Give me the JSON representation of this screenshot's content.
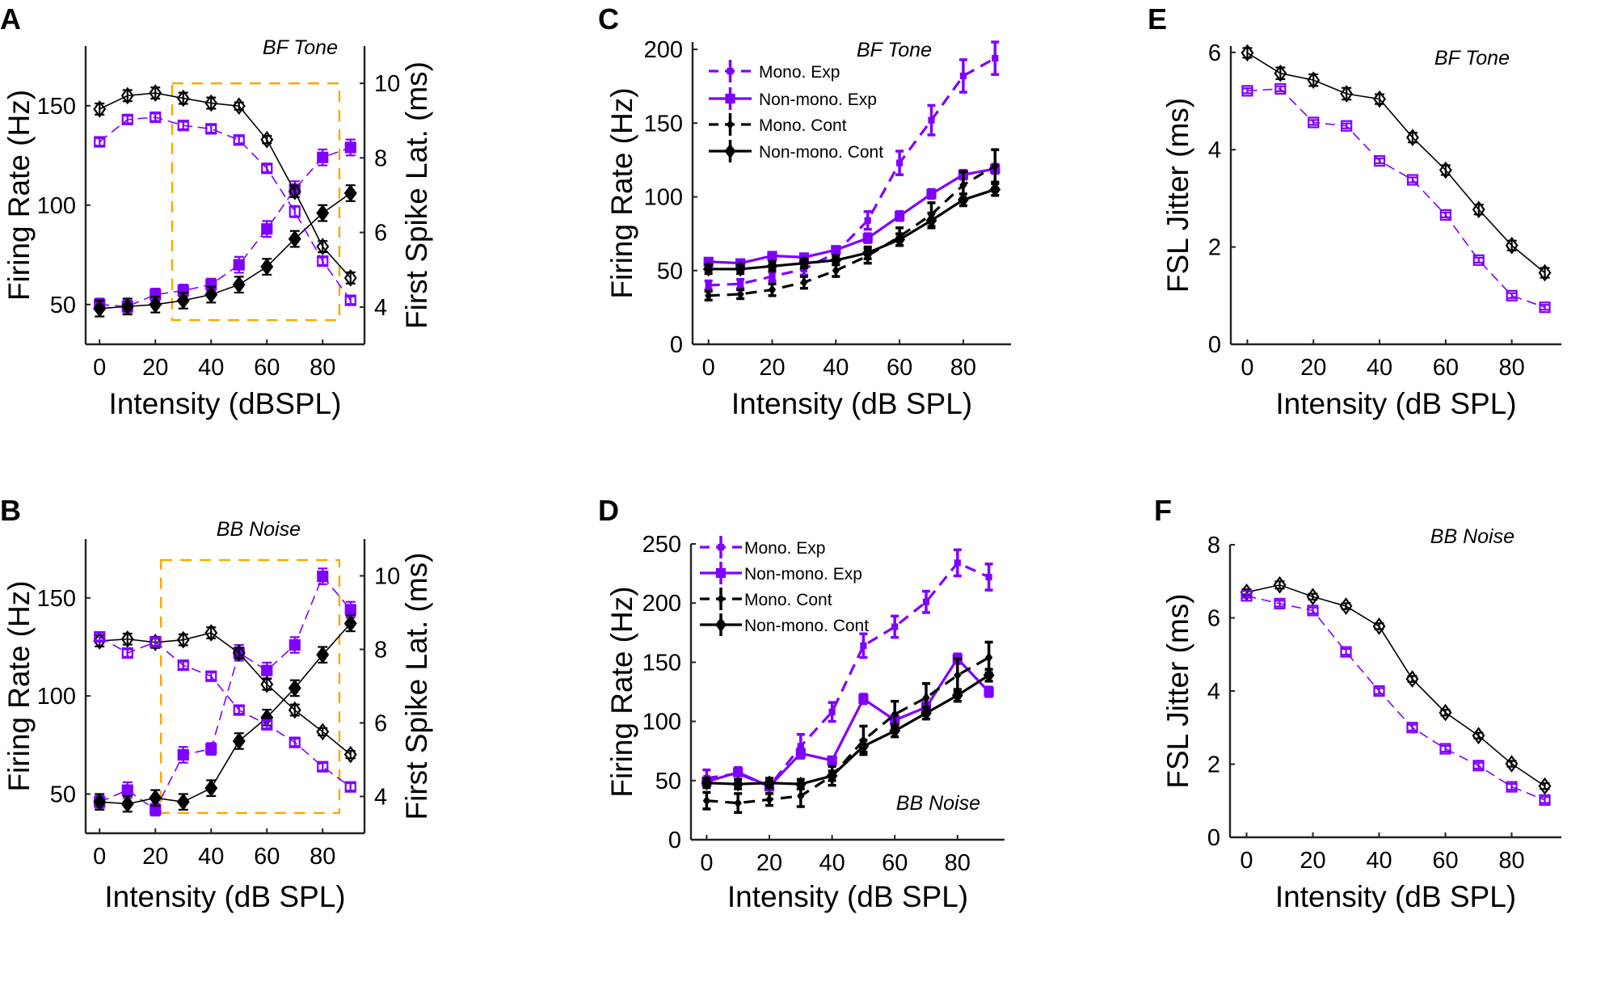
{
  "colors": {
    "experimental": "#7f00ff",
    "control": "#000000",
    "highlight_box": "#ffa500"
  },
  "chart_data": [
    {
      "panel": "A",
      "type": "line",
      "title": "BF Tone",
      "xlabel": "Intensity (dBSPL)",
      "ylabel": "Firing Rate (Hz)",
      "y2label": "First Spike Lat. (ms)",
      "xlim": [
        -5,
        95
      ],
      "ylim": [
        30,
        180
      ],
      "y2lim": [
        3,
        11
      ],
      "xticks": [
        0,
        20,
        40,
        60,
        80
      ],
      "yticks": [
        50,
        100,
        150
      ],
      "y2ticks": [
        4,
        6,
        8,
        10
      ],
      "grid": false,
      "x": [
        0,
        10,
        20,
        30,
        40,
        50,
        60,
        70,
        80,
        90
      ],
      "highlight_box": {
        "x": [
          26,
          86
        ],
        "y2": [
          3.65,
          10
        ]
      },
      "series": [
        {
          "axis": "left",
          "marker": "square",
          "filled": true,
          "dashed": true,
          "color": "#7f00ff",
          "values": [
            50,
            49,
            55,
            57,
            60,
            70,
            88,
            108,
            124,
            129
          ],
          "err": [
            3,
            3,
            3,
            3,
            3,
            4,
            4,
            4,
            4,
            4
          ]
        },
        {
          "axis": "left",
          "marker": "diamond",
          "filled": true,
          "dashed": false,
          "color": "#000000",
          "values": [
            48,
            49,
            50,
            52,
            55,
            60,
            69,
            83,
            96,
            106
          ],
          "err": [
            4,
            4,
            4,
            4,
            4,
            4,
            4,
            4,
            4,
            4
          ]
        },
        {
          "axis": "right",
          "marker": "diamond",
          "filled": false,
          "dashed": false,
          "color": "#000000",
          "values": [
            9.31,
            9.67,
            9.74,
            9.6,
            9.47,
            9.39,
            8.49,
            7.1,
            5.62,
            4.78
          ],
          "err": [
            0.15,
            0.15,
            0.15,
            0.15,
            0.15,
            0.1,
            0.1,
            0.15,
            0.15,
            0.15
          ]
        },
        {
          "axis": "right",
          "marker": "square",
          "filled": false,
          "dashed": true,
          "color": "#7f00ff",
          "values": [
            8.43,
            9.03,
            9.09,
            8.87,
            8.78,
            8.48,
            7.72,
            6.56,
            5.23,
            4.18
          ],
          "err": [
            0.1,
            0.1,
            0.1,
            0.1,
            0.1,
            0.1,
            0.1,
            0.15,
            0.1,
            0.1
          ]
        }
      ]
    },
    {
      "panel": "B",
      "type": "line",
      "title": "BB Noise",
      "xlabel": "Intensity (dB SPL)",
      "ylabel": "Firing Rate (Hz)",
      "y2label": "First Spike Lat. (ms)",
      "xlim": [
        -5,
        95
      ],
      "ylim": [
        30,
        180
      ],
      "y2lim": [
        3,
        11
      ],
      "xticks": [
        0,
        20,
        40,
        60,
        80
      ],
      "yticks": [
        50,
        100,
        150
      ],
      "y2ticks": [
        4,
        6,
        8,
        10
      ],
      "grid": false,
      "x": [
        0,
        10,
        20,
        30,
        40,
        50,
        60,
        70,
        80,
        90
      ],
      "highlight_box": {
        "x": [
          22,
          86
        ],
        "y2": [
          3.55,
          10.43
        ]
      },
      "series": [
        {
          "axis": "left",
          "marker": "square",
          "filled": true,
          "dashed": true,
          "color": "#7f00ff",
          "values": [
            46,
            52,
            42,
            70,
            73,
            122,
            113,
            126,
            161,
            144
          ],
          "err": [
            3,
            4,
            3,
            4,
            3,
            4,
            4,
            4,
            4,
            4
          ]
        },
        {
          "axis": "left",
          "marker": "diamond",
          "filled": true,
          "dashed": false,
          "color": "#000000",
          "values": [
            46,
            45,
            48,
            46,
            53,
            77,
            89,
            104,
            121,
            137
          ],
          "err": [
            4,
            4,
            4,
            4,
            4,
            4,
            4,
            4,
            4,
            4
          ]
        },
        {
          "axis": "right",
          "marker": "diamond",
          "filled": false,
          "dashed": false,
          "color": "#000000",
          "values": [
            8.23,
            8.28,
            8.19,
            8.26,
            8.45,
            7.9,
            7.05,
            6.35,
            5.76,
            5.14
          ],
          "err": [
            0.15,
            0.15,
            0.15,
            0.15,
            0.15,
            0.15,
            0.15,
            0.15,
            0.1,
            0.1
          ]
        },
        {
          "axis": "right",
          "marker": "square",
          "filled": false,
          "dashed": true,
          "color": "#7f00ff",
          "values": [
            8.34,
            7.9,
            8.2,
            7.57,
            7.27,
            6.35,
            5.95,
            5.47,
            4.81,
            4.26
          ],
          "err": [
            0.1,
            0.1,
            0.1,
            0.1,
            0.1,
            0.1,
            0.1,
            0.1,
            0.1,
            0.1
          ]
        }
      ]
    },
    {
      "panel": "C",
      "type": "line",
      "title": "BF Tone",
      "xlabel": "Intensity (dB SPL)",
      "ylabel": "Firing Rate (Hz)",
      "xlim": [
        -5,
        95
      ],
      "ylim": [
        0,
        205
      ],
      "xticks": [
        0,
        20,
        40,
        60,
        80
      ],
      "yticks": [
        0,
        50,
        100,
        150,
        200
      ],
      "grid": false,
      "legend": "top-left",
      "x": [
        0,
        10,
        20,
        30,
        40,
        50,
        60,
        70,
        80,
        90
      ],
      "series": [
        {
          "name": "Mono. Exp",
          "marker": "square-small",
          "filled": true,
          "dashed": true,
          "color": "#7f00ff",
          "values": [
            40,
            41,
            46,
            51,
            62,
            84,
            123,
            152,
            182,
            194
          ],
          "err": [
            3,
            3,
            3,
            4,
            4,
            6,
            8,
            10,
            11,
            11
          ]
        },
        {
          "name": "Non-mono. Exp",
          "marker": "square",
          "filled": true,
          "dashed": false,
          "color": "#7f00ff",
          "values": [
            56,
            55,
            60,
            59,
            64,
            72,
            87,
            102,
            115,
            119
          ],
          "err": [
            2,
            2,
            2,
            2,
            2,
            3,
            3,
            3,
            3,
            3
          ]
        },
        {
          "name": "Mono. Cont",
          "marker": "diamond-small",
          "filled": true,
          "dashed": true,
          "color": "#000000",
          "values": [
            33,
            34,
            37,
            42,
            50,
            60,
            73,
            88,
            108,
            121
          ],
          "err": [
            3,
            3,
            4,
            4,
            4,
            5,
            6,
            8,
            9,
            11
          ]
        },
        {
          "name": "Non-mono. Cont",
          "marker": "diamond",
          "filled": true,
          "dashed": false,
          "color": "#000000",
          "values": [
            51,
            51,
            53,
            55,
            57,
            62,
            71,
            84,
            98,
            105
          ],
          "err": [
            3,
            3,
            3,
            3,
            3,
            4,
            4,
            5,
            4,
            4
          ]
        }
      ]
    },
    {
      "panel": "D",
      "type": "line",
      "title": "BB Noise",
      "xlabel": "Intensity (dB SPL)",
      "ylabel": "Firing Rate (Hz)",
      "xlim": [
        -5,
        95
      ],
      "ylim": [
        0,
        250
      ],
      "xticks": [
        0,
        20,
        40,
        60,
        80
      ],
      "yticks": [
        0,
        50,
        100,
        150,
        200,
        250
      ],
      "grid": false,
      "legend": "top-left",
      "x": [
        0,
        10,
        20,
        30,
        40,
        50,
        60,
        70,
        80,
        90
      ],
      "series": [
        {
          "name": "Mono. Exp",
          "marker": "square-small",
          "filled": true,
          "dashed": true,
          "color": "#7f00ff",
          "values": [
            52,
            56,
            45,
            79,
            108,
            164,
            180,
            201,
            234,
            222
          ],
          "err": [
            7,
            5,
            6,
            10,
            8,
            10,
            9,
            9,
            11,
            11
          ]
        },
        {
          "name": "Non-mono. Exp",
          "marker": "square",
          "filled": true,
          "dashed": false,
          "color": "#7f00ff",
          "values": [
            49,
            57,
            45,
            73,
            67,
            119,
            101,
            112,
            153,
            125
          ],
          "err": [
            3,
            3,
            3,
            4,
            3,
            4,
            4,
            4,
            4,
            4
          ]
        },
        {
          "name": "Mono. Cont",
          "marker": "diamond-small",
          "filled": true,
          "dashed": true,
          "color": "#000000",
          "values": [
            33,
            31,
            34,
            37,
            54,
            84,
            106,
            120,
            139,
            154
          ],
          "err": [
            7,
            8,
            5,
            9,
            8,
            12,
            11,
            12,
            14,
            13
          ]
        },
        {
          "name": "Non-mono. Cont",
          "marker": "diamond",
          "filled": true,
          "dashed": false,
          "color": "#000000",
          "values": [
            48,
            47,
            48,
            47,
            54,
            79,
            92,
            107,
            122,
            139
          ],
          "err": [
            4,
            4,
            4,
            4,
            4,
            5,
            5,
            5,
            5,
            5
          ]
        }
      ]
    },
    {
      "panel": "E",
      "type": "line",
      "title": "BF Tone",
      "xlabel": "Intensity (dB SPL)",
      "ylabel": "FSL Jitter (ms)",
      "xlim": [
        -5,
        95
      ],
      "ylim": [
        0,
        6.13
      ],
      "xticks": [
        0,
        20,
        40,
        60,
        80
      ],
      "yticks": [
        0,
        2,
        4,
        6
      ],
      "grid": false,
      "x": [
        0,
        10,
        20,
        30,
        40,
        50,
        60,
        70,
        80,
        90
      ],
      "series": [
        {
          "marker": "diamond",
          "filled": false,
          "dashed": false,
          "color": "#000000",
          "values": [
            5.99,
            5.57,
            5.43,
            5.15,
            5.04,
            4.25,
            3.58,
            2.77,
            2.03,
            1.47
          ],
          "err": [
            0.1,
            0.12,
            0.12,
            0.12,
            0.1,
            0.1,
            0.1,
            0.1,
            0.1,
            0.1
          ]
        },
        {
          "marker": "square",
          "filled": false,
          "dashed": true,
          "color": "#7f00ff",
          "values": [
            5.21,
            5.25,
            4.56,
            4.49,
            3.77,
            3.38,
            2.66,
            1.73,
            1.0,
            0.76
          ],
          "err": [
            0.05,
            0.05,
            0.05,
            0.05,
            0.05,
            0.05,
            0.05,
            0.05,
            0.05,
            0.05
          ]
        }
      ]
    },
    {
      "panel": "F",
      "type": "line",
      "title": "BB Noise",
      "xlabel": "Intensity (dB SPL)",
      "ylabel": "FSL Jitter (ms)",
      "xlim": [
        -5,
        95
      ],
      "ylim": [
        0,
        8
      ],
      "xticks": [
        0,
        20,
        40,
        60,
        80
      ],
      "yticks": [
        0,
        2,
        4,
        6,
        8
      ],
      "grid": false,
      "x": [
        0,
        10,
        20,
        30,
        40,
        50,
        60,
        70,
        80,
        90
      ],
      "series": [
        {
          "marker": "diamond",
          "filled": false,
          "dashed": false,
          "color": "#000000",
          "values": [
            6.7,
            6.9,
            6.58,
            6.32,
            5.77,
            4.33,
            3.41,
            2.78,
            2.01,
            1.4
          ],
          "err": [
            0.08,
            0.1,
            0.08,
            0.08,
            0.08,
            0.08,
            0.08,
            0.08,
            0.08,
            0.08
          ]
        },
        {
          "marker": "square",
          "filled": false,
          "dashed": true,
          "color": "#7f00ff",
          "values": [
            6.6,
            6.39,
            6.2,
            5.07,
            4.0,
            3.0,
            2.42,
            1.96,
            1.38,
            1.02
          ],
          "err": [
            0.05,
            0.08,
            0.08,
            0.08,
            0.08,
            0.08,
            0.08,
            0.08,
            0.08,
            0.08
          ]
        }
      ]
    }
  ]
}
